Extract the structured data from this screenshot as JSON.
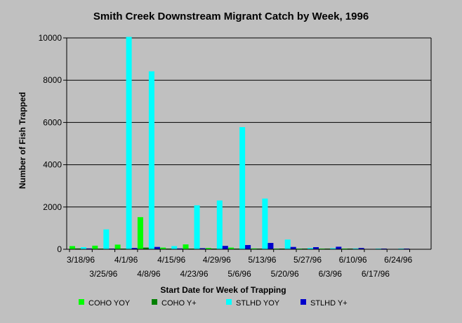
{
  "colors": {
    "background": "#c0c0c0",
    "plot_background": "#c0c0c0",
    "gridline": "#000000",
    "text": "#000000"
  },
  "chart_data": {
    "type": "bar",
    "title": "Smith Creek Downstream Migrant Catch by Week, 1996",
    "xlabel": "Start Date for Week of Trapping",
    "ylabel": "Number of Fish Trapped",
    "ylim": [
      0,
      10000
    ],
    "yticks": [
      0,
      2000,
      4000,
      6000,
      8000,
      10000
    ],
    "ytick_labels": [
      "0",
      "2000",
      "4000",
      "6000",
      "8000",
      "10000"
    ],
    "grid": true,
    "legend_position": "bottom",
    "categories": [
      "3/18/96",
      "3/25/96",
      "4/1/96",
      "4/8/96",
      "4/15/96",
      "4/23/96",
      "4/29/96",
      "5/6/96",
      "5/13/96",
      "5/20/96",
      "5/27/96",
      "6/3/96",
      "6/10/96",
      "6/17/96",
      "6/24/96"
    ],
    "label_rows": [
      0,
      1,
      0,
      1,
      0,
      1,
      0,
      1,
      0,
      1,
      0,
      1,
      0,
      1,
      0
    ],
    "series": [
      {
        "name": "COHO YOY",
        "color": "#00ff00",
        "values": [
          150,
          170,
          220,
          1520,
          80,
          230,
          60,
          80,
          40,
          20,
          10,
          10,
          5,
          0,
          0
        ]
      },
      {
        "name": "COHO Y+",
        "color": "#008000",
        "values": [
          40,
          20,
          30,
          80,
          20,
          20,
          20,
          20,
          20,
          10,
          5,
          5,
          5,
          0,
          0
        ]
      },
      {
        "name": "STLHD YOY",
        "color": "#00ffff",
        "values": [
          100,
          940,
          10050,
          8420,
          150,
          2080,
          2310,
          5780,
          2400,
          460,
          60,
          50,
          40,
          20,
          20
        ]
      },
      {
        "name": "STLHD Y+",
        "color": "#0000cc",
        "values": [
          40,
          30,
          60,
          110,
          40,
          50,
          160,
          200,
          300,
          110,
          100,
          120,
          60,
          30,
          20
        ]
      }
    ]
  }
}
